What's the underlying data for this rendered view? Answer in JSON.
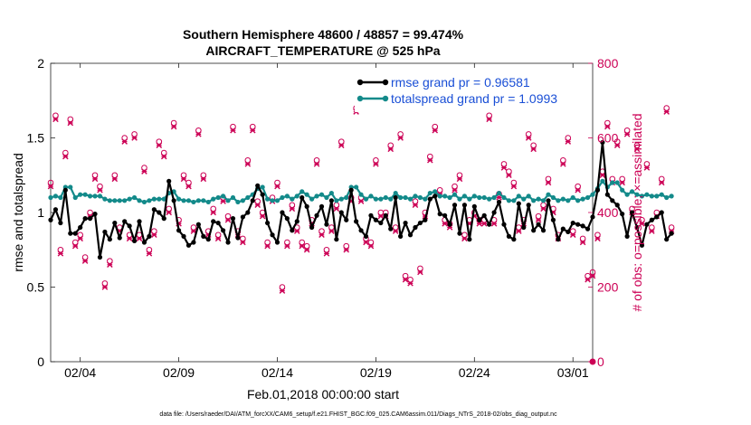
{
  "chart_data": {
    "type": "line",
    "title": "Southern Hemisphere 48600 / 48857 = 99.474%",
    "subtitle": "AIRCRAFT_TEMPERATURE @ 525 hPa",
    "xlabel": "Feb.01,2018 00:00:00 start",
    "ylabel_left": "rmse and totalspread",
    "ylabel_right": "# of obs: o=possible; ×=assimilated",
    "footer": "data file: /Users/raeder/DAI/ATM_forcXX/CAM6_setup/f.e21.FHIST_BGC.f09_025.CAM6assim.011/Diags_NTrS_2018-02/obs_diag_output.nc",
    "xlim": [
      1.5,
      29.0
    ],
    "ylim_left": [
      0,
      2
    ],
    "ylim_right": [
      0,
      800
    ],
    "x_ticks": [
      3,
      8,
      13,
      18,
      23,
      28
    ],
    "x_tick_labels": [
      "02/04",
      "02/09",
      "02/14",
      "02/19",
      "02/24",
      "03/01"
    ],
    "y_left_ticks": [
      0,
      0.5,
      1,
      1.5,
      2
    ],
    "y_left_tick_labels": [
      "0",
      "0.5",
      "1",
      "1.5",
      "2"
    ],
    "y_right_ticks": [
      0,
      200,
      400,
      600,
      800
    ],
    "y_right_tick_labels": [
      "0",
      "200",
      "400",
      "600",
      "800"
    ],
    "x_start": 1.5,
    "x_step": 0.25,
    "series": [
      {
        "name": "rmse",
        "legend": "rmse grand pr = 0.96581",
        "color": "#000000",
        "values": [
          0.95,
          1.02,
          0.93,
          1.15,
          0.86,
          0.86,
          0.9,
          0.96,
          0.96,
          0.99,
          0.7,
          0.87,
          0.82,
          0.93,
          0.83,
          0.94,
          0.91,
          0.81,
          0.94,
          0.8,
          0.84,
          1.02,
          1.0,
          0.96,
          1.21,
          1.08,
          0.88,
          0.84,
          0.78,
          0.8,
          0.92,
          0.84,
          0.82,
          0.94,
          0.93,
          0.88,
          0.8,
          0.96,
          0.83,
          0.97,
          1.0,
          1.08,
          1.18,
          1.12,
          0.93,
          0.85,
          0.8,
          1.0,
          0.96,
          0.88,
          0.94,
          1.1,
          1.04,
          0.9,
          0.98,
          1.04,
          0.92,
          1.08,
          0.82,
          1.0,
          0.95,
          1.15,
          0.94,
          0.88,
          0.84,
          0.98,
          0.95,
          0.93,
          0.98,
          0.89,
          1.1,
          0.84,
          0.93,
          0.85,
          0.9,
          0.93,
          0.95,
          1.09,
          1.11,
          0.99,
          0.98,
          0.92,
          1.05,
          0.86,
          1.05,
          0.82,
          1.04,
          0.95,
          0.98,
          0.92,
          1.0,
          1.07,
          0.92,
          0.84,
          0.82,
          1.06,
          0.9,
          1.05,
          0.88,
          0.92,
          0.88,
          1.08,
          0.95,
          0.82,
          0.89,
          0.87,
          0.93,
          0.92,
          0.91,
          0.89,
          0.97,
          1.15,
          1.47,
          1.12,
          1.08,
          1.05,
          0.99,
          0.84,
          1.0,
          0.9,
          0.78,
          0.92,
          0.95,
          0.97,
          1.0,
          0.82,
          0.86
        ]
      },
      {
        "name": "totalspread",
        "legend": "totalspread grand pr = 1.0993",
        "color": "#138a8a",
        "values": [
          1.1,
          1.11,
          1.1,
          1.17,
          1.17,
          1.1,
          1.12,
          1.12,
          1.11,
          1.11,
          1.11,
          1.09,
          1.08,
          1.08,
          1.08,
          1.08,
          1.09,
          1.1,
          1.08,
          1.07,
          1.08,
          1.09,
          1.09,
          1.09,
          1.13,
          1.14,
          1.09,
          1.08,
          1.08,
          1.07,
          1.08,
          1.08,
          1.07,
          1.09,
          1.1,
          1.11,
          1.08,
          1.1,
          1.07,
          1.08,
          1.1,
          1.12,
          1.16,
          1.17,
          1.09,
          1.08,
          1.08,
          1.1,
          1.11,
          1.09,
          1.11,
          1.14,
          1.12,
          1.09,
          1.11,
          1.12,
          1.1,
          1.13,
          1.08,
          1.09,
          1.1,
          1.17,
          1.17,
          1.12,
          1.09,
          1.11,
          1.09,
          1.09,
          1.1,
          1.09,
          1.13,
          1.1,
          1.1,
          1.09,
          1.11,
          1.1,
          1.09,
          1.13,
          1.14,
          1.11,
          1.11,
          1.1,
          1.12,
          1.09,
          1.11,
          1.09,
          1.11,
          1.1,
          1.1,
          1.09,
          1.1,
          1.13,
          1.1,
          1.08,
          1.08,
          1.11,
          1.09,
          1.11,
          1.08,
          1.09,
          1.08,
          1.12,
          1.1,
          1.08,
          1.09,
          1.08,
          1.1,
          1.08,
          1.09,
          1.1,
          1.12,
          1.16,
          1.21,
          1.17,
          1.2,
          1.2,
          1.15,
          1.12,
          1.14,
          1.12,
          1.11,
          1.12,
          1.11,
          1.11,
          1.12,
          1.1,
          1.11
        ]
      },
      {
        "name": "obs_possible",
        "axis": "right",
        "marker": "o",
        "color": "#cc0055",
        "values": [
          480,
          660,
          300,
          560,
          650,
          320,
          340,
          280,
          400,
          500,
          470,
          210,
          270,
          500,
          360,
          600,
          340,
          610,
          340,
          520,
          300,
          350,
          590,
          560,
          410,
          640,
          380,
          500,
          480,
          360,
          620,
          500,
          350,
          410,
          340,
          440,
          390,
          630,
          350,
          330,
          540,
          630,
          430,
          400,
          320,
          440,
          480,
          200,
          320,
          420,
          360,
          320,
          310,
          380,
          540,
          350,
          300,
          360,
          420,
          590,
          310,
          440,
          680,
          440,
          330,
          320,
          540,
          400,
          400,
          580,
          360,
          610,
          230,
          220,
          430,
          250,
          400,
          550,
          630,
          460,
          380,
          370,
          470,
          500,
          340,
          380,
          400,
          380,
          380,
          660,
          380,
          450,
          530,
          510,
          480,
          360,
          380,
          610,
          580,
          390,
          420,
          490,
          410,
          340,
          540,
          600,
          350,
          470,
          330,
          230,
          240,
          340,
          510,
          640,
          490,
          590,
          490,
          620,
          410,
          580,
          380,
          530,
          360,
          400,
          490,
          680,
          360
        ]
      },
      {
        "name": "obs_assimilated",
        "axis": "right",
        "marker": "x",
        "color": "#cc0055",
        "values": [
          470,
          650,
          290,
          550,
          640,
          310,
          330,
          270,
          390,
          490,
          460,
          200,
          260,
          490,
          350,
          590,
          330,
          600,
          330,
          510,
          290,
          340,
          580,
          550,
          400,
          630,
          370,
          490,
          470,
          350,
          610,
          490,
          340,
          400,
          330,
          430,
          380,
          620,
          340,
          320,
          530,
          620,
          420,
          390,
          310,
          430,
          470,
          190,
          310,
          410,
          350,
          310,
          300,
          370,
          530,
          340,
          290,
          350,
          410,
          580,
          300,
          430,
          670,
          430,
          320,
          310,
          530,
          390,
          390,
          570,
          350,
          600,
          220,
          210,
          420,
          240,
          390,
          540,
          620,
          450,
          370,
          360,
          460,
          490,
          330,
          370,
          390,
          370,
          370,
          650,
          370,
          440,
          520,
          500,
          470,
          350,
          370,
          600,
          570,
          380,
          410,
          480,
          400,
          330,
          530,
          590,
          340,
          460,
          320,
          220,
          230,
          330,
          500,
          630,
          480,
          580,
          480,
          610,
          400,
          570,
          370,
          520,
          350,
          390,
          480,
          670,
          350
        ]
      }
    ]
  }
}
